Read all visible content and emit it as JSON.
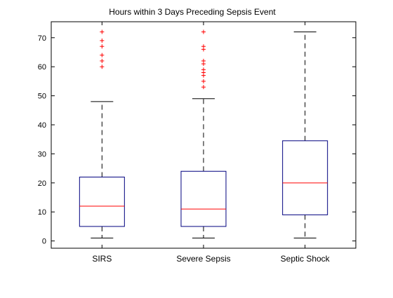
{
  "chart_data": {
    "type": "box",
    "title": "Hours within 3 Days Preceding Sepsis Event",
    "xlabel": "",
    "ylabel": "",
    "ylim": [
      -2.5,
      75.5
    ],
    "yticks": [
      0,
      10,
      20,
      30,
      40,
      50,
      60,
      70
    ],
    "grid": false,
    "categories": [
      "SIRS",
      "Severe Sepsis",
      "Septic Shock"
    ],
    "boxes": [
      {
        "category": "SIRS",
        "whisker_low": 1,
        "q1": 5,
        "median": 12,
        "q3": 22,
        "whisker_high": 48,
        "outliers": [
          60,
          62,
          64,
          67,
          69,
          72
        ]
      },
      {
        "category": "Severe Sepsis",
        "whisker_low": 1,
        "q1": 5,
        "median": 11,
        "q3": 24,
        "whisker_high": 49,
        "outliers": [
          53,
          55,
          57,
          58,
          59,
          61,
          62,
          66,
          67,
          72
        ]
      },
      {
        "category": "Septic Shock",
        "whisker_low": 1,
        "q1": 9,
        "median": 20,
        "q3": 34.5,
        "whisker_high": 72,
        "outliers": []
      }
    ],
    "colors": {
      "box": "#00007f",
      "median": "#ff0000",
      "whisker": "#000000",
      "outlier": "#ff0000"
    }
  }
}
